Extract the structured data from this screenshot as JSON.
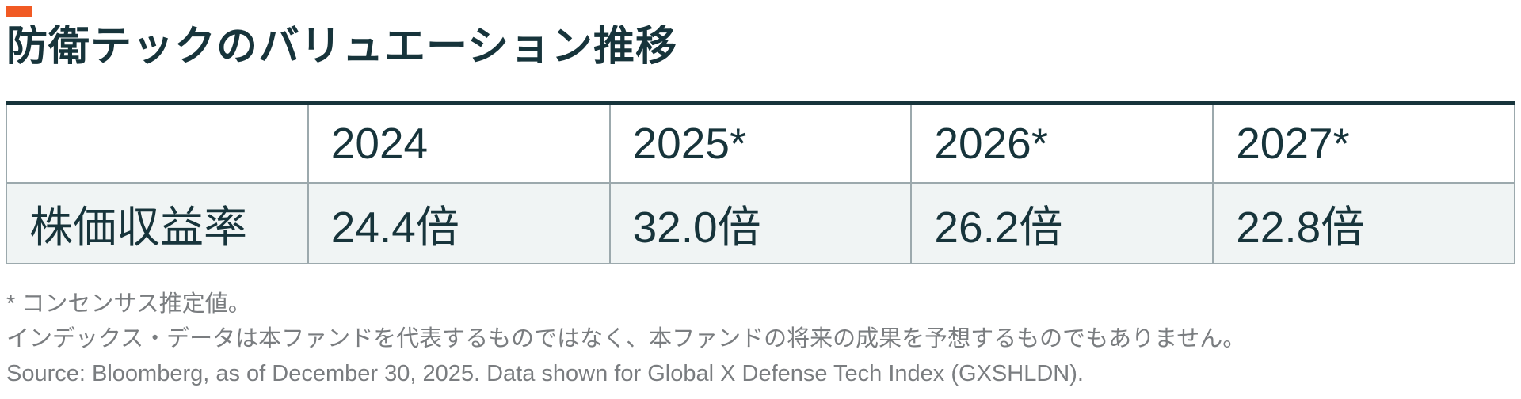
{
  "title": "防衛テックのバリュエーション推移",
  "table": {
    "columns": [
      "",
      "2024",
      "2025*",
      "2026*",
      "2027*"
    ],
    "rows": [
      {
        "label": "株価収益率",
        "values": [
          "24.4倍",
          "32.0倍",
          "26.2倍",
          "22.8倍"
        ]
      }
    ]
  },
  "footnotes": [
    "* コンセンサス推定値。",
    "インデックス・データは本ファンドを代表するものではなく、本ファンドの将来の成果を予想するものでもありません。",
    "Source: Bloomberg, as of December 30, 2025. Data shown for Global X Defense Tech Index (GXSHLDN)."
  ],
  "colors": {
    "accent_orange": "#F15A24",
    "dark_teal_text": "#17343B",
    "table_border_gray": "#9CA9AD",
    "row_background": "#F0F4F4",
    "footnote_gray": "#7A7D80"
  },
  "chart_data": {
    "type": "table",
    "title": "防衛テックのバリュエーション推移",
    "categories": [
      "2024",
      "2025*",
      "2026*",
      "2027*"
    ],
    "series": [
      {
        "name": "株価収益率",
        "values": [
          24.4,
          32.0,
          26.2,
          22.8
        ]
      }
    ],
    "unit": "倍",
    "footnote_estimate": "* コンセンサス推定値。",
    "disclaimer": "インデックス・データは本ファンドを代表するものではなく、本ファンドの将来の成果を予想するものでもありません。",
    "source": "Source: Bloomberg, as of December 30, 2025. Data shown for Global X Defense Tech Index (GXSHLDN)."
  }
}
